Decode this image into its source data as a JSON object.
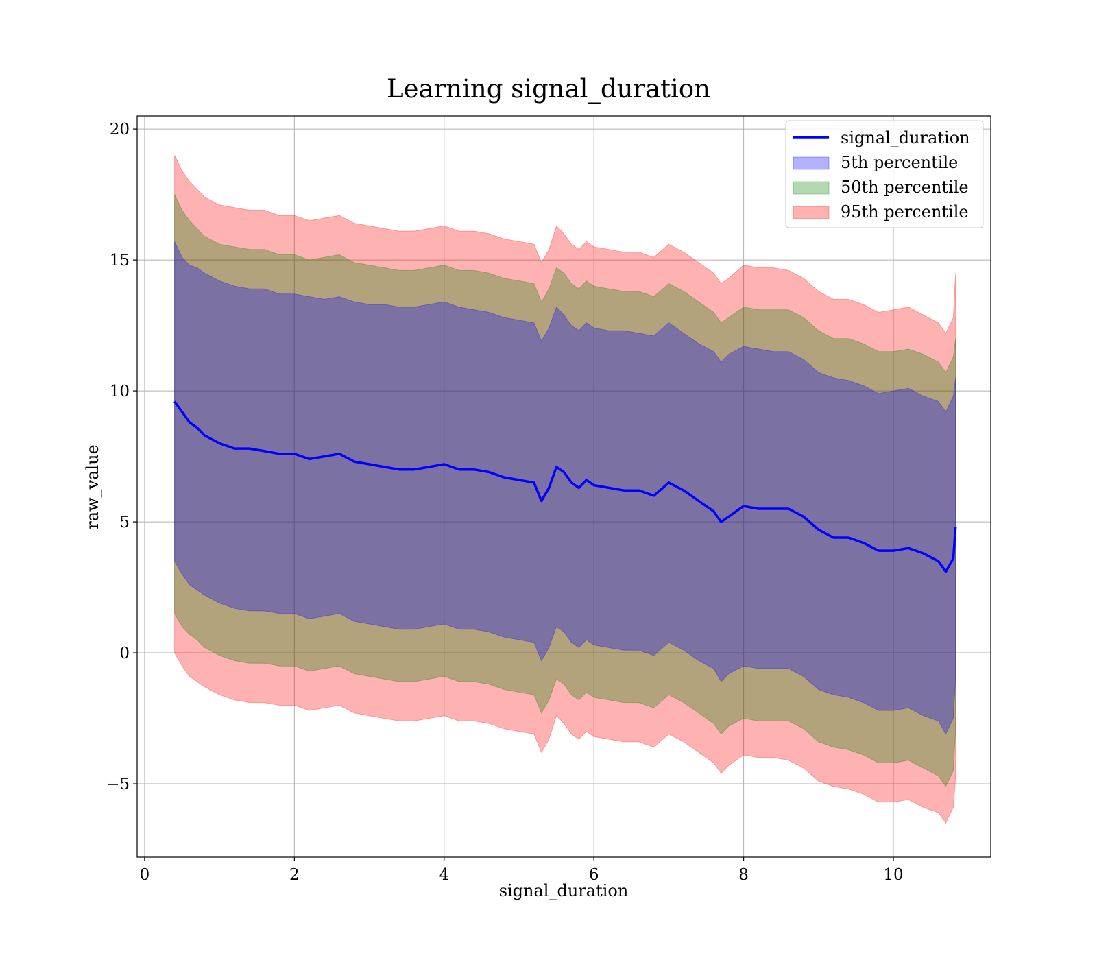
{
  "chart_data": {
    "type": "line",
    "title": "Learning signal_duration",
    "xlabel": "signal_duration",
    "ylabel": "raw_value",
    "xlim": [
      -0.1,
      11.3
    ],
    "ylim": [
      -7.8,
      20.5
    ],
    "x_ticks": [
      0,
      2,
      4,
      6,
      8,
      10
    ],
    "y_ticks": [
      -5,
      0,
      5,
      10,
      15,
      20
    ],
    "x_tick_labels": [
      "0",
      "2",
      "4",
      "6",
      "8",
      "10"
    ],
    "y_tick_labels": [
      "−5",
      "0",
      "5",
      "10",
      "15",
      "20"
    ],
    "grid": true,
    "legend_position": "top-right",
    "x": [
      0.4,
      0.5,
      0.6,
      0.7,
      0.8,
      1.0,
      1.2,
      1.4,
      1.6,
      1.8,
      2.0,
      2.2,
      2.4,
      2.6,
      2.8,
      3.0,
      3.2,
      3.4,
      3.6,
      3.8,
      4.0,
      4.2,
      4.4,
      4.6,
      4.8,
      5.0,
      5.2,
      5.3,
      5.4,
      5.5,
      5.6,
      5.7,
      5.8,
      5.9,
      6.0,
      6.2,
      6.4,
      6.6,
      6.8,
      7.0,
      7.2,
      7.4,
      7.6,
      7.7,
      7.8,
      8.0,
      8.2,
      8.4,
      8.6,
      8.8,
      9.0,
      9.2,
      9.4,
      9.6,
      9.8,
      10.0,
      10.2,
      10.4,
      10.6,
      10.7,
      10.8,
      10.83
    ],
    "series": [
      {
        "name": "signal_duration",
        "color": "#0000ff",
        "values": [
          9.6,
          9.2,
          8.8,
          8.6,
          8.3,
          8.0,
          7.8,
          7.8,
          7.7,
          7.6,
          7.6,
          7.4,
          7.5,
          7.6,
          7.3,
          7.2,
          7.1,
          7.0,
          7.0,
          7.1,
          7.2,
          7.0,
          7.0,
          6.9,
          6.7,
          6.6,
          6.5,
          5.8,
          6.3,
          7.1,
          6.9,
          6.5,
          6.3,
          6.6,
          6.4,
          6.3,
          6.2,
          6.2,
          6.0,
          6.5,
          6.2,
          5.8,
          5.4,
          5.0,
          5.2,
          5.6,
          5.5,
          5.5,
          5.5,
          5.2,
          4.7,
          4.4,
          4.4,
          4.2,
          3.9,
          3.9,
          4.0,
          3.8,
          3.5,
          3.1,
          3.6,
          4.8
        ]
      }
    ],
    "bands": [
      {
        "name": "5th percentile",
        "color": "#0000ff",
        "upper": [
          15.7,
          15.1,
          14.8,
          14.7,
          14.5,
          14.2,
          14.0,
          13.9,
          13.9,
          13.7,
          13.7,
          13.6,
          13.5,
          13.6,
          13.4,
          13.3,
          13.3,
          13.2,
          13.2,
          13.3,
          13.4,
          13.2,
          13.1,
          13.0,
          12.8,
          12.7,
          12.6,
          11.9,
          12.4,
          13.2,
          12.9,
          12.5,
          12.3,
          12.6,
          12.4,
          12.3,
          12.3,
          12.2,
          12.1,
          12.6,
          12.2,
          11.8,
          11.5,
          11.1,
          11.4,
          11.7,
          11.6,
          11.5,
          11.5,
          11.2,
          10.7,
          10.5,
          10.4,
          10.2,
          9.9,
          10.0,
          10.1,
          9.8,
          9.6,
          9.2,
          9.8,
          10.5
        ],
        "lower": [
          3.5,
          3.0,
          2.6,
          2.4,
          2.2,
          1.9,
          1.7,
          1.6,
          1.6,
          1.5,
          1.5,
          1.3,
          1.4,
          1.5,
          1.2,
          1.1,
          1.0,
          0.9,
          0.9,
          1.0,
          1.1,
          0.9,
          0.9,
          0.8,
          0.6,
          0.5,
          0.4,
          -0.3,
          0.2,
          1.0,
          0.8,
          0.4,
          0.2,
          0.5,
          0.3,
          0.2,
          0.1,
          0.1,
          -0.1,
          0.4,
          0.1,
          -0.3,
          -0.6,
          -1.1,
          -0.8,
          -0.5,
          -0.6,
          -0.6,
          -0.6,
          -0.9,
          -1.4,
          -1.6,
          -1.7,
          -1.9,
          -2.2,
          -2.2,
          -2.1,
          -2.4,
          -2.6,
          -3.1,
          -2.5,
          -1.0
        ]
      },
      {
        "name": "50th percentile",
        "color": "#008000",
        "upper": [
          17.5,
          16.9,
          16.5,
          16.2,
          15.9,
          15.6,
          15.5,
          15.4,
          15.4,
          15.2,
          15.2,
          15.0,
          15.1,
          15.2,
          14.9,
          14.8,
          14.7,
          14.6,
          14.6,
          14.7,
          14.8,
          14.6,
          14.6,
          14.5,
          14.3,
          14.2,
          14.1,
          13.4,
          13.9,
          14.7,
          14.5,
          14.1,
          13.9,
          14.2,
          14.0,
          13.9,
          13.8,
          13.8,
          13.6,
          14.1,
          13.8,
          13.4,
          13.0,
          12.6,
          12.8,
          13.2,
          13.1,
          13.1,
          13.1,
          12.8,
          12.3,
          12.0,
          12.0,
          11.8,
          11.5,
          11.5,
          11.6,
          11.4,
          11.1,
          10.7,
          11.3,
          12.0
        ],
        "lower": [
          1.5,
          1.0,
          0.7,
          0.5,
          0.2,
          -0.1,
          -0.3,
          -0.4,
          -0.4,
          -0.5,
          -0.5,
          -0.7,
          -0.6,
          -0.5,
          -0.8,
          -0.9,
          -1.0,
          -1.1,
          -1.1,
          -1.0,
          -0.9,
          -1.1,
          -1.1,
          -1.2,
          -1.4,
          -1.5,
          -1.6,
          -2.3,
          -1.8,
          -1.0,
          -1.2,
          -1.6,
          -1.8,
          -1.5,
          -1.7,
          -1.8,
          -1.9,
          -1.9,
          -2.1,
          -1.6,
          -1.9,
          -2.3,
          -2.7,
          -3.1,
          -2.8,
          -2.5,
          -2.6,
          -2.6,
          -2.6,
          -2.9,
          -3.4,
          -3.6,
          -3.7,
          -3.9,
          -4.2,
          -4.2,
          -4.1,
          -4.4,
          -4.7,
          -5.1,
          -4.5,
          -3.0
        ]
      },
      {
        "name": "95th percentile",
        "color": "#ff0000",
        "upper": [
          19.0,
          18.4,
          18.0,
          17.7,
          17.4,
          17.1,
          17.0,
          16.9,
          16.9,
          16.7,
          16.7,
          16.5,
          16.6,
          16.7,
          16.4,
          16.3,
          16.2,
          16.1,
          16.1,
          16.2,
          16.3,
          16.1,
          16.1,
          16.0,
          15.8,
          15.7,
          15.6,
          14.9,
          15.4,
          16.3,
          16.0,
          15.6,
          15.4,
          15.7,
          15.5,
          15.4,
          15.3,
          15.3,
          15.1,
          15.6,
          15.3,
          14.9,
          14.5,
          14.1,
          14.3,
          14.8,
          14.7,
          14.7,
          14.6,
          14.3,
          13.8,
          13.5,
          13.5,
          13.3,
          13.0,
          13.1,
          13.2,
          12.9,
          12.6,
          12.2,
          12.8,
          14.5
        ],
        "lower": [
          0.0,
          -0.5,
          -0.9,
          -1.1,
          -1.3,
          -1.6,
          -1.8,
          -1.9,
          -1.9,
          -2.0,
          -2.0,
          -2.2,
          -2.1,
          -2.0,
          -2.3,
          -2.4,
          -2.5,
          -2.6,
          -2.6,
          -2.5,
          -2.4,
          -2.6,
          -2.6,
          -2.7,
          -2.9,
          -3.0,
          -3.1,
          -3.8,
          -3.3,
          -2.4,
          -2.7,
          -3.1,
          -3.3,
          -3.0,
          -3.2,
          -3.3,
          -3.4,
          -3.4,
          -3.6,
          -3.1,
          -3.4,
          -3.8,
          -4.2,
          -4.6,
          -4.3,
          -3.9,
          -4.0,
          -4.0,
          -4.1,
          -4.4,
          -4.9,
          -5.1,
          -5.2,
          -5.4,
          -5.7,
          -5.7,
          -5.6,
          -5.9,
          -6.1,
          -6.5,
          -5.9,
          -4.8
        ]
      }
    ]
  }
}
